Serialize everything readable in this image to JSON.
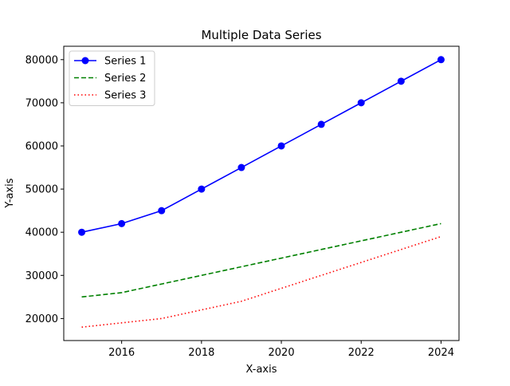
{
  "chart_data": {
    "type": "line",
    "title": "Multiple Data Series",
    "xlabel": "X-axis",
    "ylabel": "Y-axis",
    "x": [
      2015,
      2016,
      2017,
      2018,
      2019,
      2020,
      2021,
      2022,
      2023,
      2024
    ],
    "xlim": [
      2014.55,
      2024.45
    ],
    "ylim": [
      14900,
      83100
    ],
    "xticks": [
      2016,
      2018,
      2020,
      2022,
      2024
    ],
    "yticks": [
      20000,
      30000,
      40000,
      50000,
      60000,
      70000,
      80000
    ],
    "grid": false,
    "legend_position": "top-left",
    "series": [
      {
        "name": "Series 1",
        "values": [
          40000,
          42000,
          45000,
          50000,
          55000,
          60000,
          65000,
          70000,
          75000,
          80000
        ],
        "color": "#0000ff",
        "line_style": "solid",
        "marker": "circle"
      },
      {
        "name": "Series 2",
        "values": [
          25000,
          26000,
          28000,
          30000,
          32000,
          34000,
          36000,
          38000,
          40000,
          42000
        ],
        "color": "#008000",
        "line_style": "dashed",
        "marker": "none"
      },
      {
        "name": "Series 3",
        "values": [
          18000,
          19000,
          20000,
          22000,
          24000,
          27000,
          30000,
          33000,
          36000,
          39000
        ],
        "color": "#ff0000",
        "line_style": "dotted",
        "marker": "none"
      }
    ]
  }
}
